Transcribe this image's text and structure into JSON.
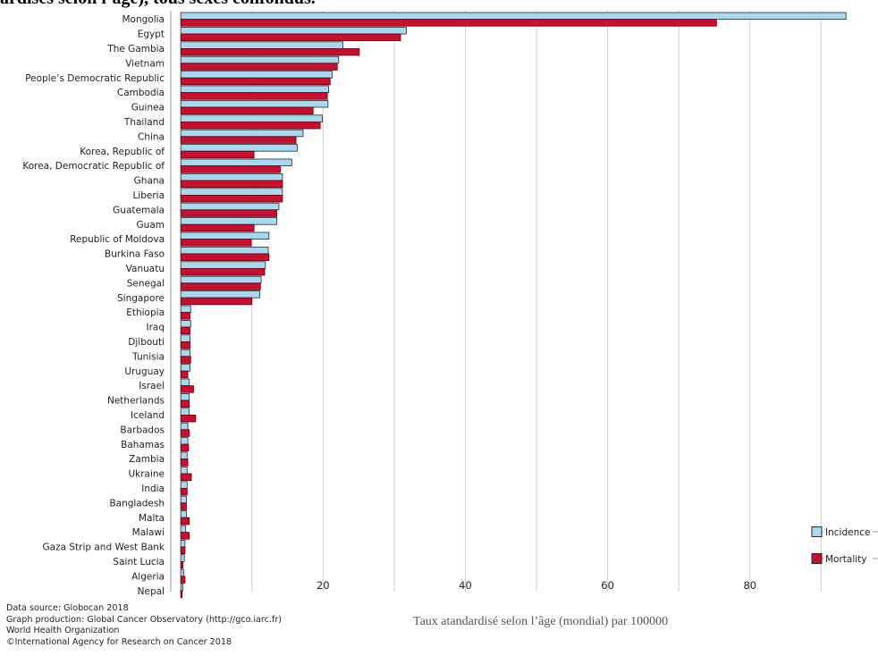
{
  "page_title": "ardises selon l’âge), tous sexes confondus.",
  "chart_data": {
    "type": "bar",
    "orientation": "horizontal",
    "categories": [
      "Mongolia",
      "Egypt",
      "The Gambia",
      "Vietnam",
      "People’s Democratic Republic",
      "Cambodia",
      "Guinea",
      "Thailand",
      "China",
      "Korea, Republic of",
      "Korea, Democratic Republic of",
      "Ghana",
      "Liberia",
      "Guatemala",
      "Guam",
      "Republic of Moldova",
      "Burkina Faso",
      "Vanuatu",
      "Senegal",
      "Singapore",
      "Ethiopia",
      "Iraq",
      "Djibouti",
      "Tunisia",
      "Uruguay",
      "Israel",
      "Netherlands",
      "Iceland",
      "Barbados",
      "Bahamas",
      "Zambia",
      "Ukraine",
      "India",
      "Bangladesh",
      "Malta",
      "Malawi",
      "Gaza Strip and West Bank",
      "Saint Lucia",
      "Algeria",
      "Nepal"
    ],
    "series": [
      {
        "name": "Incidence",
        "color": "#a8d8f0",
        "values": [
          93.5,
          31.7,
          22.8,
          22.2,
          21.3,
          20.8,
          20.7,
          19.9,
          17.2,
          16.4,
          15.6,
          14.3,
          14.3,
          13.8,
          13.5,
          12.4,
          12.3,
          11.9,
          11.3,
          11.1,
          1.4,
          1.4,
          1.3,
          1.3,
          1.3,
          1.2,
          1.2,
          1.2,
          1.0,
          1.0,
          0.9,
          0.9,
          0.9,
          0.8,
          0.8,
          0.7,
          0.6,
          0.5,
          0.4,
          0.3
        ]
      },
      {
        "name": "Mortality",
        "color": "#c8102e",
        "values": [
          75.3,
          30.9,
          25.1,
          22.0,
          21.0,
          20.6,
          18.6,
          19.6,
          16.2,
          10.3,
          14.0,
          14.3,
          14.3,
          13.5,
          10.3,
          9.9,
          12.4,
          11.8,
          11.2,
          10.0,
          1.3,
          1.3,
          1.3,
          1.4,
          1.0,
          1.8,
          1.2,
          2.1,
          1.2,
          1.1,
          1.0,
          1.5,
          0.9,
          0.8,
          1.2,
          1.2,
          0.6,
          0.3,
          0.6,
          0.2
        ]
      }
    ],
    "x_ticks": [
      20,
      40,
      60,
      80
    ],
    "xlim": [
      -1.4,
      98
    ],
    "xlabel": "Taux atandardisé selon l’âge (mondial) par 100000",
    "grid": true,
    "legend": {
      "placement": "bottom-right"
    }
  },
  "source": [
    "Data source: Globocan 2018",
    "Graph production: Global Cancer Observatory (http://gco.iarc.fr)",
    "World Health Organization",
    "©International Agency for Research on Cancer 2018"
  ]
}
